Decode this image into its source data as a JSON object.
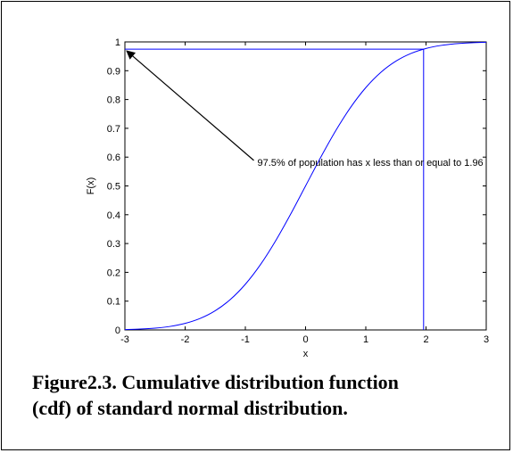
{
  "chart_data": {
    "type": "line",
    "title": "",
    "xlabel": "x",
    "ylabel": "F(x)",
    "xlim": [
      -3,
      3
    ],
    "ylim": [
      0,
      1
    ],
    "x_ticks": [
      "-3",
      "-2",
      "-1",
      "0",
      "1",
      "2",
      "3"
    ],
    "y_ticks": [
      "0",
      "0.1",
      "0.2",
      "0.3",
      "0.4",
      "0.5",
      "0.6",
      "0.7",
      "0.8",
      "0.9",
      "1"
    ],
    "grid": false,
    "series": [
      {
        "color": "#0000ff",
        "x": [
          -3,
          -2.75,
          -2.5,
          -2.25,
          -2,
          -1.75,
          -1.5,
          -1.25,
          -1,
          -0.75,
          -0.5,
          -0.25,
          0,
          0.25,
          0.5,
          0.75,
          1,
          1.25,
          1.5,
          1.75,
          2,
          2.25,
          2.5,
          2.75,
          3
        ],
        "y": [
          0.0013,
          0.003,
          0.0062,
          0.0122,
          0.0228,
          0.0401,
          0.0668,
          0.1056,
          0.1587,
          0.2266,
          0.3085,
          0.4013,
          0.5,
          0.5987,
          0.6915,
          0.7734,
          0.8413,
          0.8944,
          0.9332,
          0.9599,
          0.9772,
          0.9878,
          0.9938,
          0.997,
          0.9987
        ]
      }
    ],
    "reference_lines": {
      "color": "#0000ff",
      "x_value": 1.96,
      "y_value": 0.975
    },
    "annotation": {
      "text": "97.5% of population has x less than or equal to 1.96",
      "arrow_to": [
        -3,
        0.975
      ],
      "text_anchor_at": [
        -0.8,
        0.57
      ]
    }
  },
  "caption": {
    "line1": "Figure2.3. Cumulative distribution function",
    "line2": "(cdf) of standard normal distribution."
  }
}
